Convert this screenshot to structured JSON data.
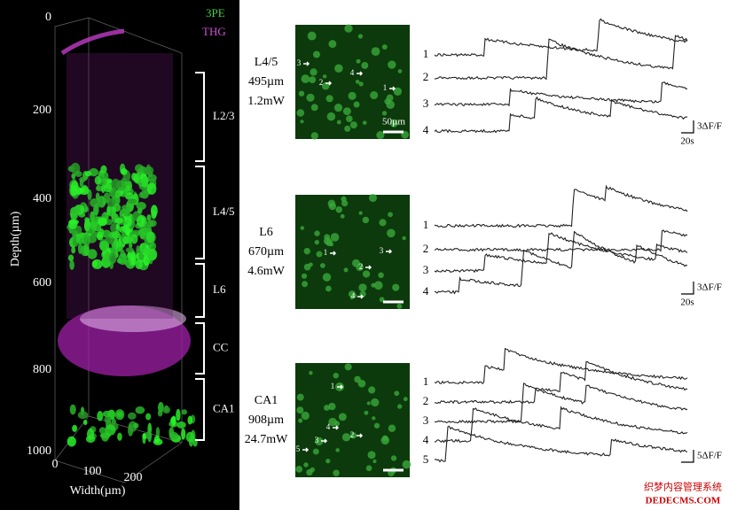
{
  "volume": {
    "legend": [
      "3PE",
      "THG"
    ],
    "depth_axis": {
      "label": "Depth(µm)",
      "ticks": [
        "0",
        "200",
        "400",
        "600",
        "800",
        "1000"
      ]
    },
    "width_axis": {
      "label": "Width(µm)",
      "ticks": [
        "0",
        "100",
        "200"
      ]
    },
    "layers": [
      "L2/3",
      "L4/5",
      "L6",
      "CC",
      "CA1"
    ]
  },
  "panels": [
    {
      "region": "L4/5",
      "depth": "495µm",
      "power": "1.2mW",
      "cells": [
        "1",
        "2",
        "3",
        "4"
      ],
      "scale_bar": "50µm",
      "traces": [
        "1",
        "2",
        "3",
        "4"
      ],
      "scale_y": "3ΔF/F",
      "scale_x": "20s"
    },
    {
      "region": "L6",
      "depth": "670µm",
      "power": "4.6mW",
      "cells": [
        "1",
        "2",
        "3",
        "4"
      ],
      "traces": [
        "1",
        "2",
        "3",
        "4"
      ],
      "scale_y": "3ΔF/F",
      "scale_x": "20s"
    },
    {
      "region": "CA1",
      "depth": "908µm",
      "power": "24.7mW",
      "cells": [
        "1",
        "2",
        "3",
        "4",
        "5"
      ],
      "traces": [
        "1",
        "2",
        "3",
        "4",
        "5"
      ],
      "scale_y": "5ΔF/F"
    }
  ],
  "watermark": [
    "织梦内容管理系统",
    "DEDECMS.COM"
  ]
}
